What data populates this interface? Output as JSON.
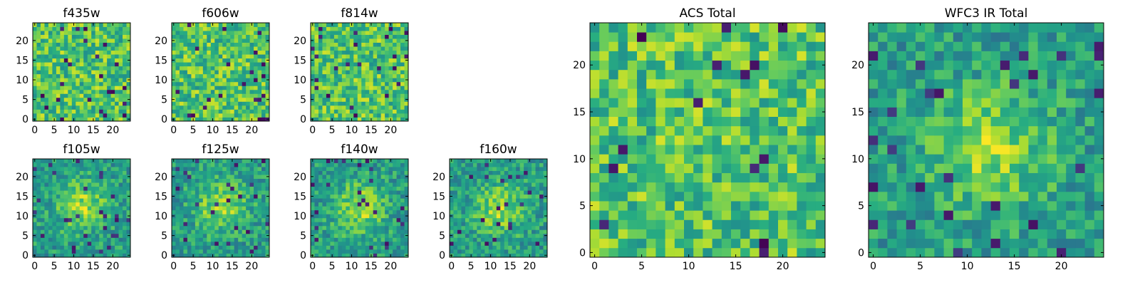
{
  "figure": {
    "colormap": "viridis",
    "tick_color": "#000000",
    "frame_color": "#000000"
  },
  "chart_data": [
    {
      "type": "heatmap",
      "title": "f435w",
      "grid_size": [
        25,
        25
      ],
      "x_ticks": [
        "0",
        "5",
        "10",
        "15",
        "20"
      ],
      "y_ticks": [
        "0",
        "5",
        "10",
        "15",
        "20"
      ],
      "xlim": [
        -0.5,
        24.5
      ],
      "ylim": [
        -0.5,
        24.5
      ],
      "pattern": "noise",
      "seed": 1
    },
    {
      "type": "heatmap",
      "title": "f606w",
      "grid_size": [
        25,
        25
      ],
      "x_ticks": [
        "0",
        "5",
        "10",
        "15",
        "20"
      ],
      "y_ticks": [
        "0",
        "5",
        "10",
        "15",
        "20"
      ],
      "xlim": [
        -0.5,
        24.5
      ],
      "ylim": [
        -0.5,
        24.5
      ],
      "pattern": "noise",
      "seed": 2
    },
    {
      "type": "heatmap",
      "title": "f814w",
      "grid_size": [
        25,
        25
      ],
      "x_ticks": [
        "0",
        "5",
        "10",
        "15",
        "20"
      ],
      "y_ticks": [
        "0",
        "5",
        "10",
        "15",
        "20"
      ],
      "xlim": [
        -0.5,
        24.5
      ],
      "ylim": [
        -0.5,
        24.5
      ],
      "pattern": "noise",
      "seed": 3
    },
    {
      "type": "heatmap",
      "title": "f105w",
      "grid_size": [
        25,
        25
      ],
      "x_ticks": [
        "0",
        "5",
        "10",
        "15",
        "20"
      ],
      "y_ticks": [
        "0",
        "5",
        "10",
        "15",
        "20"
      ],
      "xlim": [
        -0.5,
        24.5
      ],
      "ylim": [
        -0.5,
        24.5
      ],
      "pattern": "blob",
      "seed": 4
    },
    {
      "type": "heatmap",
      "title": "f125w",
      "grid_size": [
        25,
        25
      ],
      "x_ticks": [
        "0",
        "5",
        "10",
        "15",
        "20"
      ],
      "y_ticks": [
        "0",
        "5",
        "10",
        "15",
        "20"
      ],
      "xlim": [
        -0.5,
        24.5
      ],
      "ylim": [
        -0.5,
        24.5
      ],
      "pattern": "blob",
      "seed": 5
    },
    {
      "type": "heatmap",
      "title": "f140w",
      "grid_size": [
        25,
        25
      ],
      "x_ticks": [
        "0",
        "5",
        "10",
        "15",
        "20"
      ],
      "y_ticks": [
        "0",
        "5",
        "10",
        "15",
        "20"
      ],
      "xlim": [
        -0.5,
        24.5
      ],
      "ylim": [
        -0.5,
        24.5
      ],
      "pattern": "blob",
      "seed": 6
    },
    {
      "type": "heatmap",
      "title": "f160w",
      "grid_size": [
        25,
        25
      ],
      "x_ticks": [
        "0",
        "5",
        "10",
        "15",
        "20"
      ],
      "y_ticks": [
        "0",
        "5",
        "10",
        "15",
        "20"
      ],
      "xlim": [
        -0.5,
        24.5
      ],
      "ylim": [
        -0.5,
        24.5
      ],
      "pattern": "blob",
      "seed": 7
    },
    {
      "type": "heatmap",
      "title": "ACS Total",
      "grid_size": [
        25,
        25
      ],
      "x_ticks": [
        "0",
        "5",
        "10",
        "15",
        "20"
      ],
      "y_ticks": [
        "0",
        "5",
        "10",
        "15",
        "20"
      ],
      "xlim": [
        -0.5,
        24.5
      ],
      "ylim": [
        -0.5,
        24.5
      ],
      "pattern": "noise",
      "seed": 8
    },
    {
      "type": "heatmap",
      "title": "WFC3 IR Total",
      "grid_size": [
        25,
        25
      ],
      "x_ticks": [
        "0",
        "5",
        "10",
        "15",
        "20"
      ],
      "y_ticks": [
        "0",
        "5",
        "10",
        "15",
        "20"
      ],
      "xlim": [
        -0.5,
        24.5
      ],
      "ylim": [
        -0.5,
        24.5
      ],
      "pattern": "blob",
      "seed": 9
    }
  ]
}
